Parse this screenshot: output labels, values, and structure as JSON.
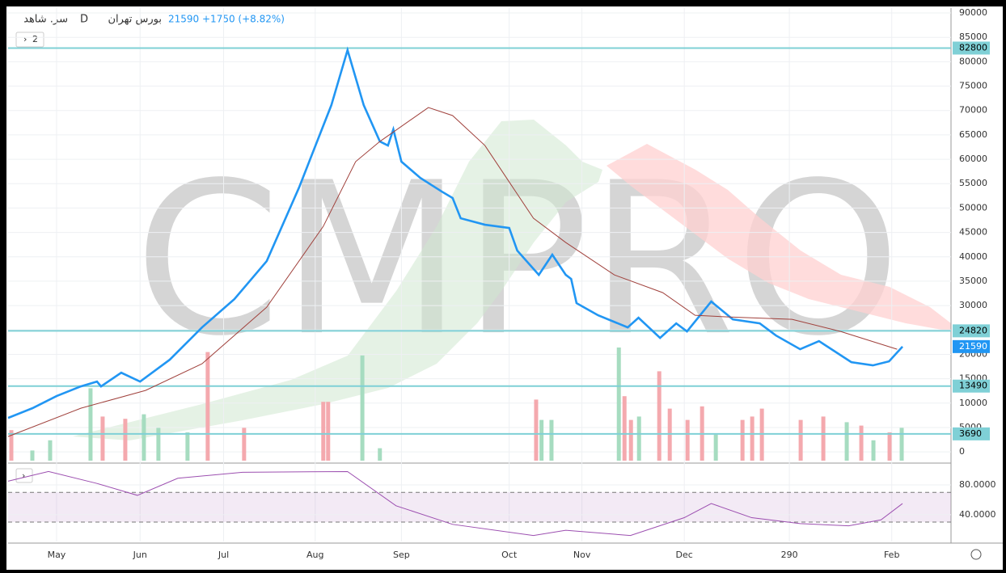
{
  "chart_data": {
    "type": "line",
    "title": "سر. شاهد",
    "interval": "D",
    "exchange": "بورس تهران",
    "last_price": 21590,
    "change": "+1750 (+8.82%)",
    "watermark": "CMPRO",
    "pane_count": 2,
    "xlim": [
      0,
      350
    ],
    "xticks": [
      {
        "value": 18,
        "label": "May"
      },
      {
        "value": 49,
        "label": "Jun"
      },
      {
        "value": 80,
        "label": "Jul"
      },
      {
        "value": 114,
        "label": "Aug"
      },
      {
        "value": 146,
        "label": "Sep"
      },
      {
        "value": 186,
        "label": "Oct"
      },
      {
        "value": 213,
        "label": "Nov"
      },
      {
        "value": 251,
        "label": "Dec"
      },
      290,
      {
        "value": 328,
        "label": "Feb"
      }
    ],
    "ylim": [
      -1800,
      91000
    ],
    "yticks": [
      0,
      5000,
      10000,
      15000,
      20000,
      25000,
      30000,
      35000,
      40000,
      45000,
      50000,
      55000,
      60000,
      65000,
      70000,
      75000,
      80000,
      85000,
      90000
    ],
    "grid": true,
    "series": [
      {
        "color": "#2196f3",
        "x": [
          0,
          9,
          18,
          27,
          33,
          34.5,
          42,
          49,
          60,
          72,
          84,
          96,
          108,
          120,
          126,
          132,
          138,
          141,
          143,
          146,
          153,
          161,
          165,
          168,
          177,
          186,
          189,
          197,
          202,
          207,
          209,
          211,
          219,
          230,
          234,
          242,
          248,
          252,
          261,
          269,
          279,
          285,
          294,
          301,
          313,
          321,
          327,
          332
        ],
        "values": [
          6960,
          8950,
          11440,
          13430,
          14420,
          13430,
          16240,
          14420,
          18900,
          25530,
          31330,
          39120,
          54200,
          71110,
          82380,
          71110,
          63650,
          62820,
          66130,
          59510,
          56190,
          53370,
          52050,
          47900,
          46580,
          45910,
          41270,
          36300,
          40440,
          36300,
          35470,
          30500,
          28010,
          25530,
          27510,
          23370,
          26350,
          24700,
          30830,
          27180,
          26350,
          23870,
          21050,
          22710,
          18400,
          17740,
          18560,
          21590
        ]
      },
      {
        "color": "#a0413c",
        "x": [
          0,
          27,
          51,
          72,
          96,
          117,
          129,
          138,
          156,
          165,
          177,
          186,
          195,
          207,
          225,
          243,
          255,
          267,
          291,
          309,
          330
        ],
        "values": [
          3150,
          8950,
          12600,
          18070,
          29670,
          46250,
          59510,
          63650,
          70610,
          68960,
          62820,
          55360,
          47900,
          42930,
          36300,
          32650,
          28010,
          27680,
          27180,
          24700,
          21050
        ]
      }
    ],
    "levels": {
      "color": "#7fd0d6",
      "values": [
        82800,
        24820,
        13490,
        3690
      ]
    },
    "volume": {
      "ylim": [
        0,
        100
      ],
      "x": [
        1.2,
        9,
        15.6,
        30.6,
        35.1,
        43.5,
        50.4,
        55.8,
        66.6,
        74.1,
        87.6,
        117,
        118.8,
        131.5,
        138,
        196,
        198,
        201.7,
        226.7,
        228.8,
        231.2,
        234.2,
        241.7,
        245.6,
        252.2,
        257.6,
        262.7,
        272.6,
        276.2,
        279.8,
        294.2,
        302.6,
        311.3,
        316.7,
        321.2,
        327.2,
        331.7
      ],
      "values": [
        27,
        9,
        18,
        64,
        39,
        37,
        41,
        29,
        25,
        96,
        29,
        52,
        52,
        93,
        11,
        54,
        36,
        36,
        100,
        57,
        36,
        39,
        79,
        46,
        36,
        48,
        23,
        36,
        39,
        46,
        36,
        39,
        34,
        31,
        18,
        25,
        29
      ],
      "colors": [
        "#f4a9ae",
        "#a6dcc0",
        "#a6dcc0",
        "#a6dcc0",
        "#f4a9ae",
        "#f4a9ae",
        "#a6dcc0",
        "#a6dcc0",
        "#a6dcc0",
        "#f4a9ae",
        "#f4a9ae",
        "#f4a9ae",
        "#f4a9ae",
        "#a6dcc0",
        "#a6dcc0",
        "#f4a9ae",
        "#a6dcc0",
        "#a6dcc0",
        "#a6dcc0",
        "#f4a9ae",
        "#f4a9ae",
        "#a6dcc0",
        "#f4a9ae",
        "#f4a9ae",
        "#f4a9ae",
        "#f4a9ae",
        "#a6dcc0",
        "#f4a9ae",
        "#f4a9ae",
        "#f4a9ae",
        "#f4a9ae",
        "#f4a9ae",
        "#a6dcc0",
        "#f4a9ae",
        "#a6dcc0",
        "#f4a9ae",
        "#a6dcc0"
      ]
    },
    "rsi": {
      "color": "#9c4fb0",
      "ylim": [
        4,
        105
      ],
      "yticks": [
        {
          "value": 40,
          "label": "40.0000"
        },
        {
          "value": 80,
          "label": "80.0000"
        }
      ],
      "band": [
        30,
        70
      ],
      "x": [
        0,
        15,
        33,
        48,
        63,
        87,
        126,
        144,
        165,
        195,
        207,
        231,
        251,
        261,
        276,
        294,
        312,
        324,
        332
      ],
      "values": [
        85,
        98,
        82,
        66,
        89,
        97,
        98,
        52,
        27,
        12,
        19,
        12,
        36,
        55,
        36,
        28,
        25,
        33,
        55
      ]
    }
  }
}
